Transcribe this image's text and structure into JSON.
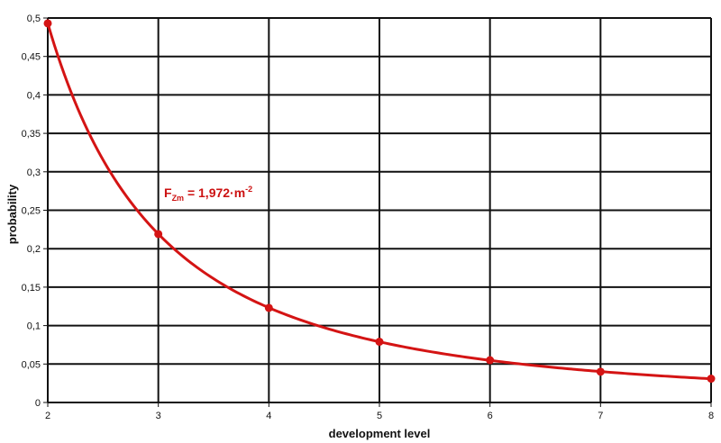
{
  "chart_data": {
    "type": "line",
    "title": "",
    "xlabel": "development level",
    "ylabel": "probability",
    "xlim": [
      2,
      8
    ],
    "ylim": [
      0,
      0.5
    ],
    "grid": true,
    "x_ticks": [
      "2",
      "3",
      "4",
      "5",
      "6",
      "7",
      "8"
    ],
    "y_ticks": [
      "0",
      "0,05",
      "0,1",
      "0,15",
      "0,2",
      "0,25",
      "0,3",
      "0,35",
      "0,4",
      "0,45",
      "0,5"
    ],
    "annotation": {
      "main": "F",
      "sub": "Zm",
      "rest": " = 1,972·m",
      "sup": "-2"
    },
    "series": [
      {
        "color": "#d41414",
        "curve": {
          "a": 1.972,
          "b": -2
        },
        "points": [
          {
            "x": 2,
            "y": 0.493
          },
          {
            "x": 3,
            "y": 0.219
          },
          {
            "x": 4,
            "y": 0.123
          },
          {
            "x": 5,
            "y": 0.079
          },
          {
            "x": 6,
            "y": 0.055
          },
          {
            "x": 7,
            "y": 0.04
          },
          {
            "x": 8,
            "y": 0.031
          }
        ]
      }
    ]
  }
}
